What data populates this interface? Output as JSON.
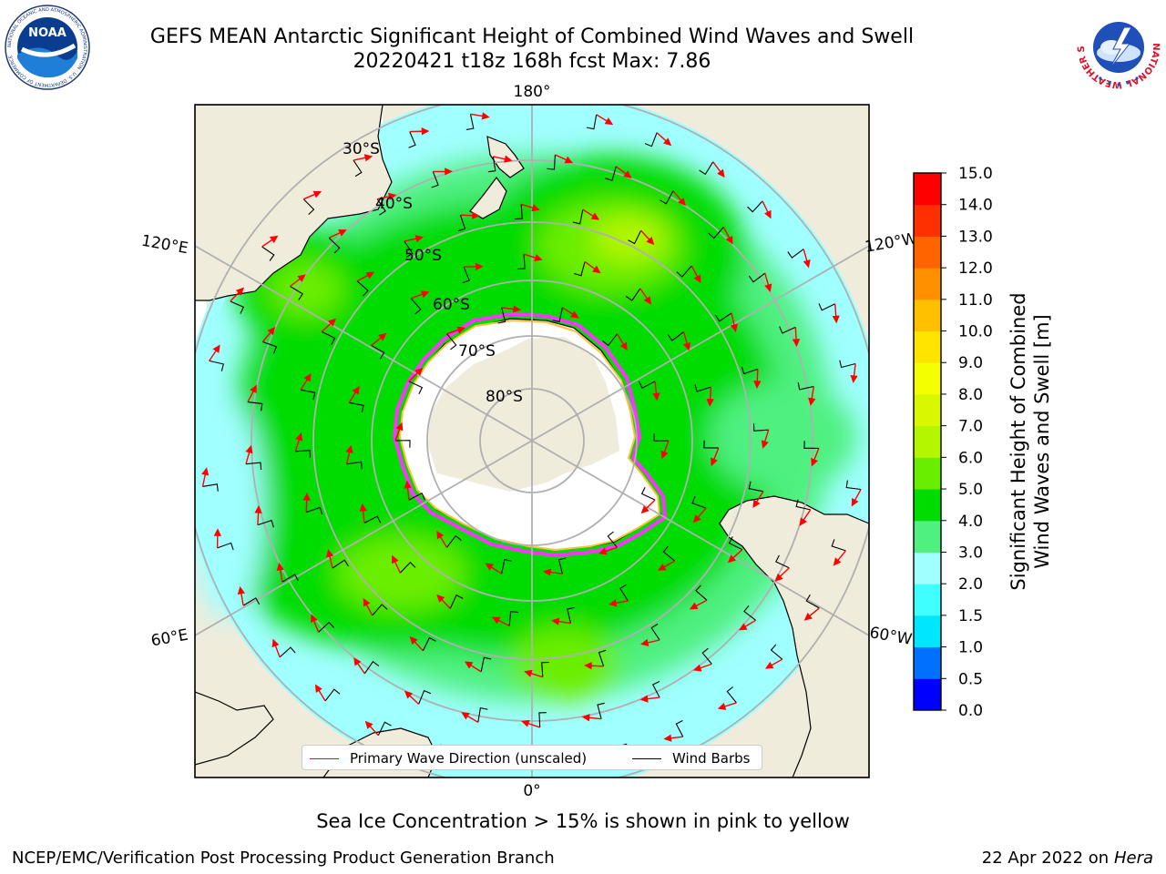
{
  "header": {
    "title_line1": "GEFS MEAN Antarctic Significant Height of Combined Wind Waves and Swell",
    "title_line2": "20220421 t18z 168h fcst   Max: 7.86"
  },
  "logos": {
    "noaa": {
      "text": "NOAA",
      "ring_text": "NATIONAL OCEANIC AND ATMOSPHERIC ADMINISTRATION · U.S. DEPARTMENT OF COMMERCE"
    },
    "nws": {
      "ring_text": "NATIONAL WEATHER SERVICE"
    }
  },
  "map": {
    "meridian_labels": [
      "180°",
      "120°E",
      "120°W",
      "60°E",
      "60°W",
      "0°"
    ],
    "parallel_labels": [
      "30°S",
      "40°S",
      "50°S",
      "60°S",
      "70°S",
      "80°S"
    ],
    "legend": {
      "wave_label": "Primary Wave Direction (unscaled)",
      "wave_color": "#ff0000",
      "barb_label": "Wind Barbs",
      "barb_color": "#000000"
    }
  },
  "colorbar": {
    "title_line1": "Significant Height of Combined",
    "title_line2": "Wind Waves and Swell [m]",
    "ticks": [
      "0.0",
      "0.5",
      "1.0",
      "1.5",
      "2.0",
      "3.0",
      "4.0",
      "5.0",
      "6.0",
      "7.0",
      "8.0",
      "9.0",
      "10.0",
      "11.0",
      "12.0",
      "13.0",
      "14.0",
      "15.0"
    ],
    "colors": [
      "#0000ff",
      "#0070ff",
      "#00e6ff",
      "#40ffff",
      "#a0ffff",
      "#50f080",
      "#00dc00",
      "#6aee00",
      "#b4f500",
      "#d8f800",
      "#f4ff00",
      "#ffe400",
      "#ffc000",
      "#ff9000",
      "#ff6400",
      "#ff3000",
      "#ff0000"
    ]
  },
  "notes": {
    "sea_ice": "Sea Ice Concentration > 15% is shown in pink to yellow"
  },
  "footer": {
    "left": "NCEP/EMC/Verification Post Processing Product Generation Branch",
    "date": "22 Apr 2022 on",
    "machine": "Hera"
  }
}
